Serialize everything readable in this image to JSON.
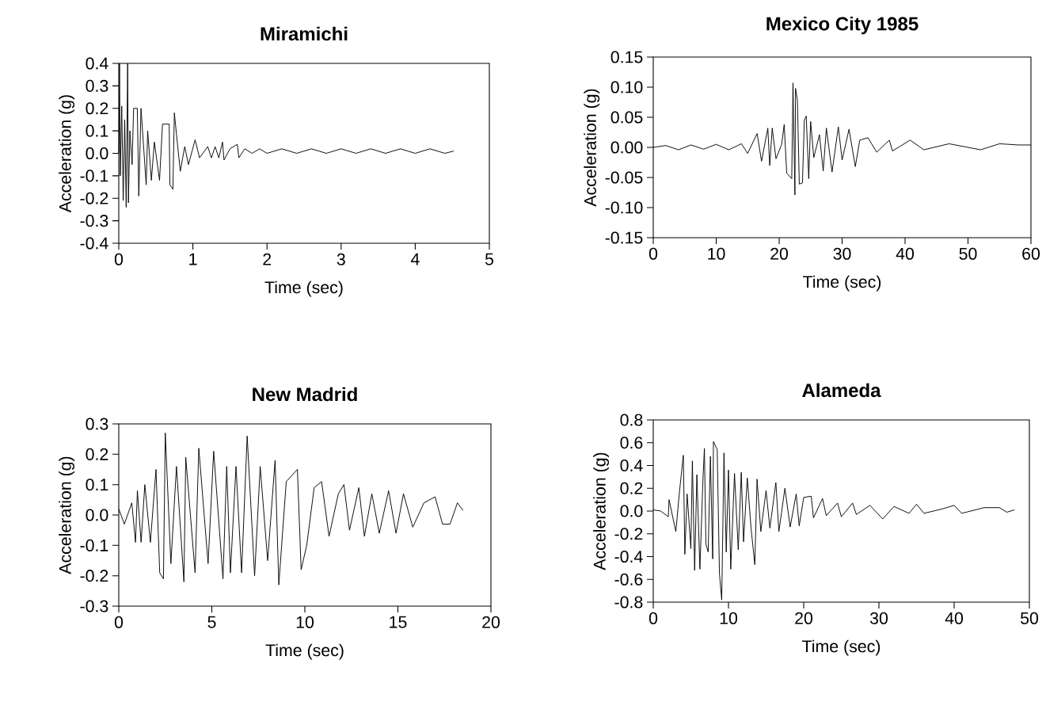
{
  "chart_data": [
    {
      "type": "line",
      "title": "Miramichi",
      "xlabel": "Time (sec)",
      "ylabel": "Acceleration (g)",
      "xlim": [
        0,
        5
      ],
      "ylim": [
        -0.4,
        0.4
      ],
      "xticks": [
        0,
        1,
        2,
        3,
        4,
        5
      ],
      "yticks": [
        -0.4,
        -0.3,
        -0.2,
        -0.1,
        {
          "value": 0,
          "label": "0.0"
        },
        0.1,
        0.2,
        0.3,
        0.4
      ],
      "series": [
        {
          "color": "#000000",
          "x": [
            0,
            0.01,
            0.02,
            0.04,
            0.06,
            0.08,
            0.1,
            0.12,
            0.13,
            0.15,
            0.18,
            0.2,
            0.25,
            0.27,
            0.3,
            0.37,
            0.39,
            0.44,
            0.48,
            0.55,
            0.59,
            0.68,
            0.69,
            0.73,
            0.75,
            0.78,
            0.83,
            0.89,
            0.94,
            1.03,
            1.09,
            1.2,
            1.25,
            1.3,
            1.35,
            1.4,
            1.42,
            1.5,
            1.6,
            1.62,
            1.7,
            1.8,
            1.9,
            2.0,
            2.2,
            2.4,
            2.6,
            2.8,
            3.0,
            3.2,
            3.4,
            3.6,
            3.8,
            4.0,
            4.2,
            4.4,
            4.52
          ],
          "values": [
            0,
            0.4,
            -0.1,
            0.21,
            -0.21,
            0.15,
            -0.24,
            0.4,
            -0.22,
            0.1,
            -0.05,
            0.2,
            0.2,
            -0.19,
            0.2,
            -0.14,
            0.1,
            -0.12,
            0.05,
            -0.12,
            0.13,
            0.13,
            -0.14,
            -0.16,
            0.18,
            0.08,
            -0.08,
            0.03,
            -0.05,
            0.06,
            -0.02,
            0.03,
            -0.02,
            0.03,
            -0.02,
            0.05,
            -0.03,
            0.02,
            0.04,
            -0.02,
            0.02,
            0,
            0.02,
            0,
            0.02,
            0,
            0.02,
            0,
            0.02,
            0,
            0.02,
            0,
            0.02,
            0,
            0.02,
            0,
            0.01
          ]
        }
      ]
    },
    {
      "type": "line",
      "title": "Mexico City 1985",
      "xlabel": "Time (sec)",
      "ylabel": "Acceleration (g)",
      "xlim": [
        0,
        60
      ],
      "ylim": [
        -0.15,
        0.15
      ],
      "xticks": [
        0,
        10,
        20,
        30,
        40,
        50,
        60
      ],
      "yticks": [
        -0.15,
        {
          "value": -0.1,
          "label": "-0.10"
        },
        -0.05,
        {
          "value": 0,
          "label": "0.00"
        },
        0.05,
        {
          "value": 0.1,
          "label": "0.10"
        },
        0.15
      ],
      "series": [
        {
          "color": "#000000",
          "x": [
            0,
            2,
            4,
            6,
            8,
            10,
            12,
            14,
            15,
            16.5,
            17.2,
            18.2,
            18.5,
            18.9,
            19.5,
            20.4,
            20.8,
            21.2,
            22.0,
            22.2,
            22.5,
            22.6,
            22.9,
            23.2,
            23.7,
            24.0,
            24.3,
            24.7,
            25.0,
            25.5,
            26.4,
            27.0,
            27.5,
            28.4,
            29.4,
            30.0,
            31.1,
            32.1,
            32.8,
            34.1,
            35.5,
            37.5,
            38,
            40.8,
            43,
            47,
            52,
            55,
            58,
            60
          ],
          "values": [
            0,
            0.003,
            -0.004,
            0.004,
            -0.003,
            0.005,
            -0.004,
            0.006,
            -0.01,
            0.023,
            -0.023,
            0.032,
            -0.03,
            0.032,
            -0.019,
            0.005,
            0.038,
            -0.043,
            -0.052,
            0.107,
            -0.079,
            0.098,
            0.078,
            -0.061,
            -0.059,
            0.045,
            0.052,
            -0.052,
            0.043,
            -0.017,
            0.021,
            -0.039,
            0.032,
            -0.041,
            0.034,
            -0.021,
            0.03,
            -0.032,
            0.012,
            0.016,
            -0.008,
            0.012,
            -0.006,
            0.012,
            -0.004,
            0.006,
            -0.004,
            0.006,
            0.004,
            0.004
          ]
        }
      ]
    },
    {
      "type": "line",
      "title": "New Madrid",
      "xlabel": "Time (sec)",
      "ylabel": "Acceleration (g)",
      "xlim": [
        0,
        20
      ],
      "ylim": [
        -0.3,
        0.3
      ],
      "xticks": [
        0,
        5,
        10,
        15,
        20
      ],
      "yticks": [
        -0.3,
        -0.2,
        -0.1,
        {
          "value": 0,
          "label": "0.0"
        },
        0.1,
        0.2,
        0.3
      ],
      "series": [
        {
          "color": "#000000",
          "x": [
            0,
            0.3,
            0.7,
            0.9,
            1.0,
            1.2,
            1.4,
            1.7,
            2.0,
            2.2,
            2.4,
            2.5,
            2.8,
            3.1,
            3.5,
            3.6,
            4.1,
            4.3,
            4.8,
            5.1,
            5.6,
            5.8,
            6.0,
            6.3,
            6.6,
            6.9,
            7.3,
            7.6,
            8.0,
            8.4,
            8.6,
            9.0,
            9.6,
            9.8,
            10.1,
            10.5,
            10.9,
            11.3,
            11.8,
            12.1,
            12.4,
            12.9,
            13.2,
            13.6,
            14.0,
            14.5,
            14.9,
            15.3,
            15.8,
            16.4,
            17.0,
            17.4,
            17.8,
            18.2,
            18.5
          ],
          "values": [
            0.02,
            -0.03,
            0.04,
            -0.09,
            0.08,
            -0.09,
            0.1,
            -0.09,
            0.15,
            -0.19,
            -0.21,
            0.27,
            -0.16,
            0.16,
            -0.22,
            0.19,
            -0.19,
            0.22,
            -0.16,
            0.21,
            -0.21,
            0.16,
            -0.19,
            0.16,
            -0.19,
            0.26,
            -0.2,
            0.16,
            -0.15,
            0.18,
            -0.23,
            0.11,
            0.15,
            -0.18,
            -0.1,
            0.09,
            0.11,
            -0.07,
            0.07,
            0.1,
            -0.05,
            0.09,
            -0.07,
            0.07,
            -0.06,
            0.08,
            -0.06,
            0.07,
            -0.04,
            0.04,
            0.06,
            -0.03,
            -0.03,
            0.04,
            0.015
          ]
        }
      ]
    },
    {
      "type": "line",
      "title": "Alameda",
      "xlabel": "Time (sec)",
      "ylabel": "Acceleration (g)",
      "xlim": [
        0,
        50
      ],
      "ylim": [
        -0.8,
        0.8
      ],
      "xticks": [
        0,
        10,
        20,
        30,
        40,
        50
      ],
      "yticks": [
        -0.8,
        -0.6,
        -0.4,
        -0.2,
        {
          "value": 0,
          "label": "0.0"
        },
        0.2,
        0.4,
        0.6,
        0.8
      ],
      "series": [
        {
          "color": "#000000",
          "x": [
            0,
            1,
            2.0,
            2.1,
            3.0,
            3.5,
            4.0,
            4.2,
            4.5,
            5.0,
            5.2,
            5.5,
            5.8,
            6.2,
            6.6,
            6.8,
            7.0,
            7.3,
            7.6,
            7.9,
            8.0,
            8.5,
            8.8,
            9.1,
            9.4,
            9.7,
            10.0,
            10.3,
            10.8,
            11.3,
            11.7,
            12.0,
            12.5,
            13.0,
            13.5,
            13.8,
            14.3,
            15.0,
            15.5,
            16.3,
            16.7,
            17.5,
            18.2,
            19.0,
            19.4,
            20.0,
            21.0,
            21.3,
            22.5,
            23.0,
            24.5,
            25.0,
            26.5,
            27,
            28.8,
            30.5,
            32,
            34,
            35,
            36,
            38.5,
            40,
            41,
            44,
            46,
            47,
            48
          ],
          "values": [
            0.01,
            0,
            -0.05,
            0.1,
            -0.18,
            0.18,
            0.49,
            -0.38,
            0.15,
            -0.33,
            0.44,
            -0.52,
            0.32,
            -0.51,
            0.27,
            0.55,
            -0.29,
            -0.36,
            0.48,
            -0.42,
            0.61,
            0.54,
            -0.55,
            -0.78,
            0.51,
            -0.36,
            0.36,
            -0.51,
            0.33,
            -0.34,
            0.34,
            -0.27,
            0.29,
            -0.15,
            -0.47,
            0.28,
            -0.18,
            0.18,
            -0.15,
            0.25,
            -0.18,
            0.2,
            -0.14,
            0.15,
            -0.13,
            0.12,
            0.13,
            -0.06,
            0.11,
            -0.04,
            0.07,
            -0.05,
            0.07,
            -0.03,
            0.05,
            -0.07,
            0.04,
            -0.02,
            0.06,
            -0.02,
            0.02,
            0.05,
            -0.02,
            0.03,
            0.03,
            -0.01,
            0.01
          ]
        }
      ]
    }
  ]
}
